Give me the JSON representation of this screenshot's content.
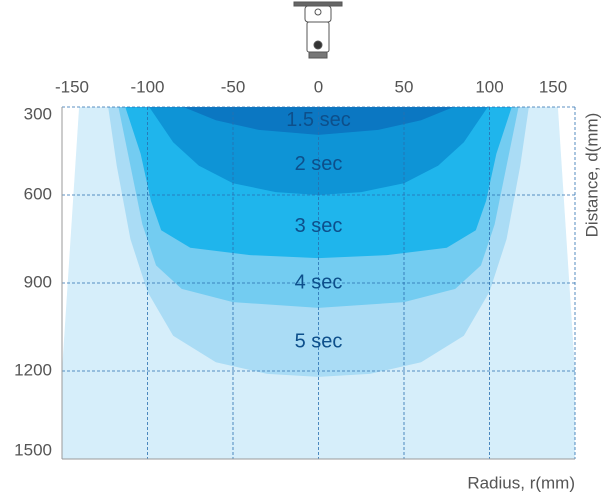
{
  "chart_data": {
    "type": "contour",
    "x_label": "Radius, r(mm)",
    "y_label": "Distance, d(mm)",
    "xlim": [
      -150,
      150
    ],
    "ylim": [
      300,
      1500
    ],
    "y_inverted": true,
    "xticks": [
      -150,
      -100,
      -50,
      0,
      50,
      100,
      150
    ],
    "yticks": [
      300,
      600,
      900,
      1200,
      1500
    ],
    "grid": true,
    "regions": [
      {
        "color": "#d6eefa",
        "x": [
          -140,
          -150,
          -150,
          150,
          150,
          140
        ],
        "y": [
          300,
          1200,
          1500,
          1500,
          1200,
          300
        ]
      },
      {
        "name": "5 sec",
        "color": "#aadcf5",
        "x": [
          -123,
          -118,
          -110,
          -100,
          -85,
          -60,
          -30,
          0,
          30,
          60,
          85,
          100,
          110,
          118,
          123
        ],
        "y": [
          300,
          500,
          750,
          930,
          1080,
          1170,
          1210,
          1220,
          1210,
          1170,
          1080,
          930,
          750,
          500,
          300
        ]
      },
      {
        "name": "4 sec",
        "color": "#73ccf1",
        "x": [
          -117,
          -110,
          -103,
          -95,
          -80,
          -50,
          0,
          50,
          80,
          95,
          103,
          110,
          117
        ],
        "y": [
          300,
          500,
          700,
          840,
          920,
          965,
          985,
          965,
          920,
          840,
          700,
          500,
          300
        ]
      },
      {
        "name": "3 sec",
        "color": "#1fb5ec",
        "x": [
          -113,
          -104,
          -98,
          -92,
          -75,
          -40,
          0,
          40,
          75,
          92,
          98,
          104,
          113
        ],
        "y": [
          300,
          460,
          620,
          720,
          780,
          805,
          815,
          805,
          780,
          720,
          620,
          460,
          300
        ]
      },
      {
        "name": "2 sec",
        "color": "#0e94d6",
        "x": [
          -99,
          -85,
          -70,
          -50,
          -25,
          0,
          25,
          50,
          70,
          85,
          99
        ],
        "y": [
          300,
          420,
          500,
          560,
          590,
          600,
          590,
          560,
          500,
          420,
          300
        ]
      },
      {
        "name": "1.5 sec",
        "color": "#0b77c2",
        "x": [
          -79,
          -60,
          -35,
          0,
          35,
          60,
          79
        ],
        "y": [
          300,
          345,
          378,
          395,
          378,
          345,
          300
        ]
      }
    ]
  }
}
